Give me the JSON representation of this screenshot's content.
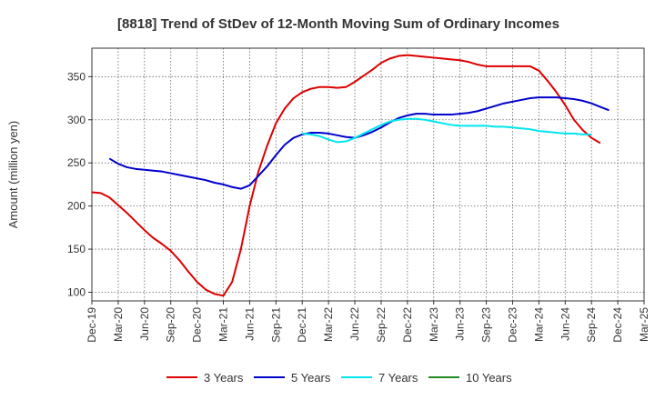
{
  "chart_data": {
    "type": "line",
    "title": "[8818]  Trend of StDev of 12-Month Moving Sum of Ordinary Incomes",
    "ylabel": "Amount (million yen)",
    "xlabel": "",
    "ylim": [
      90,
      383
    ],
    "yticks": [
      100,
      150,
      200,
      250,
      300,
      350
    ],
    "xlim": [
      "2019-12",
      "2025-03"
    ],
    "xticks": [
      "Dec-19",
      "Mar-20",
      "Jun-20",
      "Sep-20",
      "Dec-20",
      "Mar-21",
      "Jun-21",
      "Sep-21",
      "Dec-21",
      "Mar-22",
      "Jun-22",
      "Sep-22",
      "Dec-22",
      "Mar-23",
      "Jun-23",
      "Sep-23",
      "Dec-23",
      "Mar-24",
      "Jun-24",
      "Sep-24",
      "Dec-24",
      "Mar-25"
    ],
    "grid": true,
    "legend_position": "bottom",
    "series": [
      {
        "name": "3 Years",
        "color": "#dd0000",
        "start": "2019-12",
        "values": [
          216,
          215,
          210,
          201,
          192,
          182,
          172,
          163,
          156,
          148,
          137,
          124,
          112,
          103,
          98,
          96,
          112,
          150,
          200,
          240,
          270,
          296,
          313,
          325,
          332,
          336,
          338,
          338,
          337,
          338,
          344,
          351,
          358,
          366,
          371,
          374,
          375,
          374,
          373,
          372,
          371,
          370,
          369,
          367,
          364,
          362,
          362,
          362,
          362,
          362,
          362,
          357,
          345,
          332,
          317,
          300,
          288,
          279,
          273
        ]
      },
      {
        "name": "5 Years",
        "color": "#0000cc",
        "start": "2020-02",
        "values": [
          255,
          249,
          245,
          243,
          242,
          241,
          240,
          238,
          236,
          234,
          232,
          230,
          227,
          225,
          222,
          220,
          224,
          235,
          246,
          259,
          271,
          279,
          283,
          285,
          285,
          284,
          282,
          280,
          279,
          282,
          286,
          291,
          297,
          302,
          305,
          307,
          307,
          306,
          306,
          306,
          307,
          308,
          310,
          313,
          316,
          319,
          321,
          323,
          325,
          326,
          326,
          326,
          325,
          324,
          322,
          319,
          315,
          311
        ]
      },
      {
        "name": "7 Years",
        "color": "#00e5ee",
        "start": "2021-12",
        "values": [
          284,
          283,
          281,
          277,
          274,
          275,
          279,
          284,
          289,
          294,
          298,
          300,
          301,
          301,
          300,
          298,
          296,
          294,
          293,
          293,
          293,
          293,
          292,
          292,
          291,
          290,
          289,
          287,
          286,
          285,
          284,
          284,
          283,
          283
        ]
      },
      {
        "name": "10 Years",
        "color": "#228b22",
        "start": "2019-12",
        "values": []
      }
    ]
  }
}
